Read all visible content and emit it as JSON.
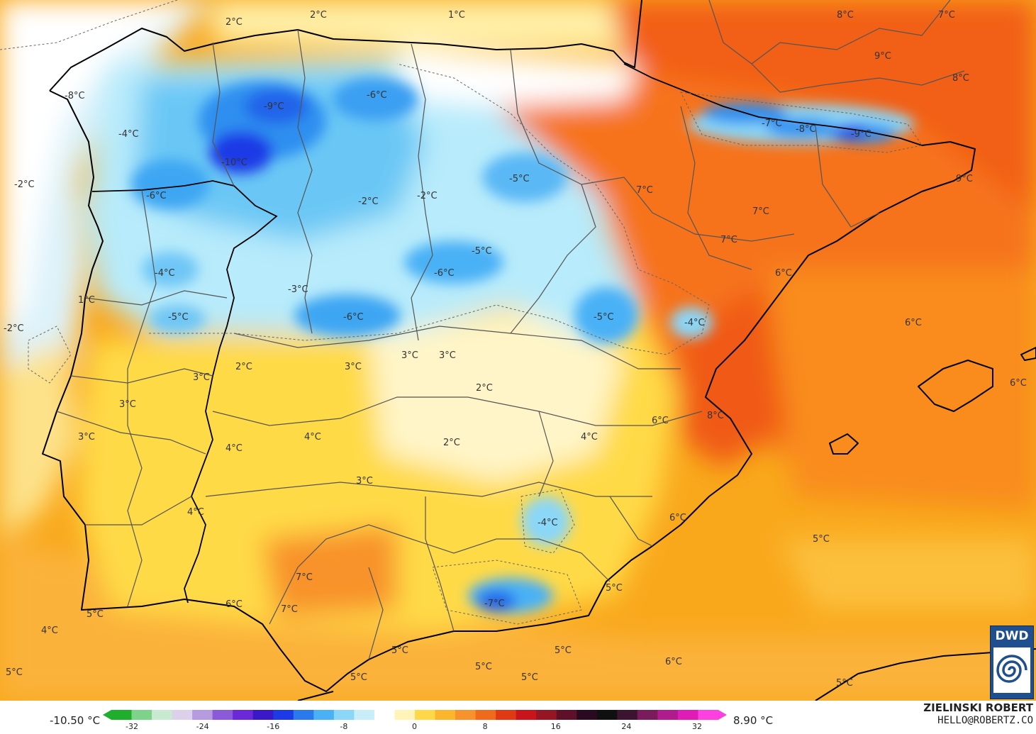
{
  "map": {
    "labels": [
      {
        "text": "2°C"
      },
      {
        "text": "2°C"
      },
      {
        "text": "1°C"
      },
      {
        "text": "8°C"
      },
      {
        "text": "7°C"
      },
      {
        "text": "9°C"
      },
      {
        "text": "8°C"
      },
      {
        "text": "-8°C"
      },
      {
        "text": "-9°C"
      },
      {
        "text": "-6°C"
      },
      {
        "text": "-4°C"
      },
      {
        "text": "-7°C"
      },
      {
        "text": "-8°C"
      },
      {
        "text": "-9°C"
      },
      {
        "text": "-10°C"
      },
      {
        "text": "-2°C"
      },
      {
        "text": "-5°C"
      },
      {
        "text": "-6°C"
      },
      {
        "text": "-2°C"
      },
      {
        "text": "-2°C"
      },
      {
        "text": "7°C"
      },
      {
        "text": "9°C"
      },
      {
        "text": "7°C"
      },
      {
        "text": "7°C"
      },
      {
        "text": "-5°C"
      },
      {
        "text": "-4°C"
      },
      {
        "text": "-6°C"
      },
      {
        "text": "-3°C"
      },
      {
        "text": "6°C"
      },
      {
        "text": "1°C"
      },
      {
        "text": "-2°C"
      },
      {
        "text": "-5°C"
      },
      {
        "text": "-6°C"
      },
      {
        "text": "-5°C"
      },
      {
        "text": "-4°C"
      },
      {
        "text": "6°C"
      },
      {
        "text": "3°C"
      },
      {
        "text": "3°C"
      },
      {
        "text": "2°C"
      },
      {
        "text": "3°C"
      },
      {
        "text": "3°C"
      },
      {
        "text": "2°C"
      },
      {
        "text": "6°C"
      },
      {
        "text": "3°C"
      },
      {
        "text": "8°C"
      },
      {
        "text": "6°C"
      },
      {
        "text": "3°C"
      },
      {
        "text": "4°C"
      },
      {
        "text": "4°C"
      },
      {
        "text": "2°C"
      },
      {
        "text": "4°C"
      },
      {
        "text": "3°C"
      },
      {
        "text": "4°C"
      },
      {
        "text": "-4°C"
      },
      {
        "text": "6°C"
      },
      {
        "text": "5°C"
      },
      {
        "text": "7°C"
      },
      {
        "text": "5°C"
      },
      {
        "text": "6°C"
      },
      {
        "text": "7°C"
      },
      {
        "text": "-7°C"
      },
      {
        "text": "4°C"
      },
      {
        "text": "5°C"
      },
      {
        "text": "5°C"
      },
      {
        "text": "5°C"
      },
      {
        "text": "5°C"
      },
      {
        "text": "5°C"
      },
      {
        "text": "5°C"
      },
      {
        "text": "6°C"
      },
      {
        "text": "5°C"
      },
      {
        "text": "5°C"
      }
    ]
  },
  "legend": {
    "min_value": "-10.50 °C",
    "max_value": "8.90 °C",
    "ticks": [
      "-32",
      "-24",
      "-16",
      "-8",
      "0",
      "8",
      "16",
      "24",
      "32"
    ],
    "colors": [
      "#1fae2e",
      "#7ed38a",
      "#c9ead0",
      "#dcd0ea",
      "#b59ae0",
      "#8a5ad8",
      "#6a28d6",
      "#3a18c8",
      "#1c3be6",
      "#2a7aee",
      "#4ab1f6",
      "#8ad7f8",
      "#c8eefa",
      "#ffffff",
      "#fff3b8",
      "#ffd84a",
      "#fcb62e",
      "#f8922a",
      "#f06a1c",
      "#e03a14",
      "#c8141a",
      "#961624",
      "#5e1028",
      "#2a0a20",
      "#101010",
      "#3c1430",
      "#7a1c5c",
      "#b01c8e",
      "#e01cb6",
      "#ff40e0"
    ],
    "author": "ZIELINSKI ROBERT",
    "email": "HELLO@ROBERTZ.CO",
    "logo_text": "DWD"
  },
  "palette": {
    "sea": "#f9a81c",
    "cold": "#1e8fe8",
    "warm": "#f6731a",
    "mild": "#ffd73a"
  }
}
